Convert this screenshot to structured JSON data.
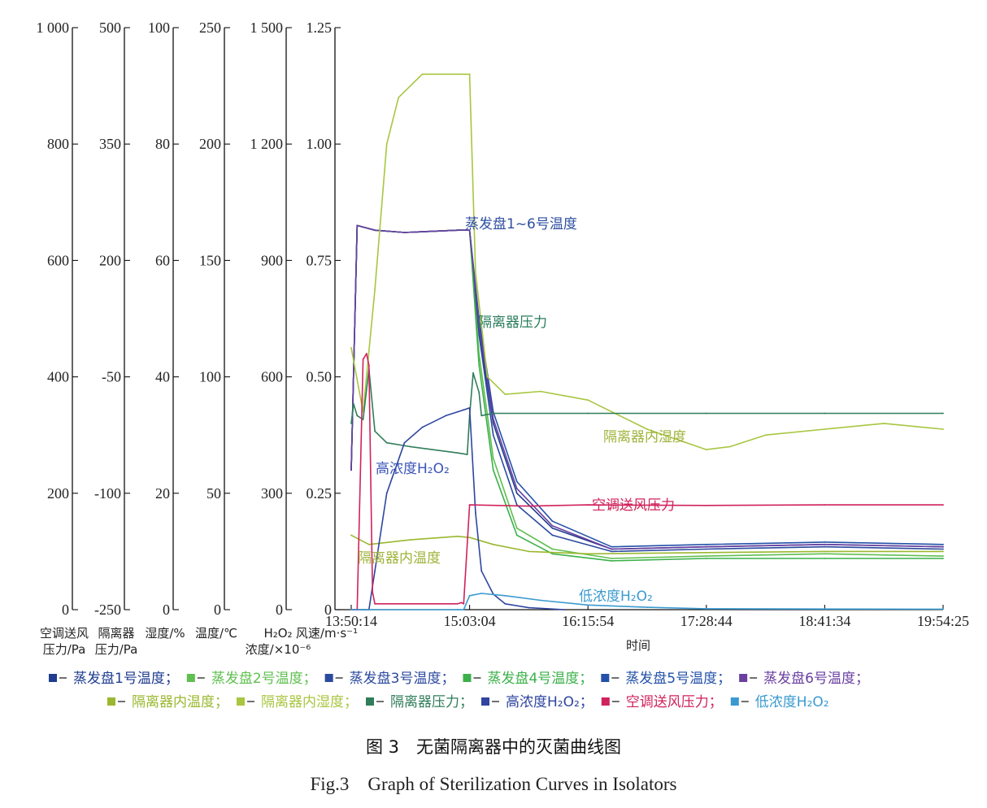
{
  "figure": {
    "caption_cn": "图 3　无菌隔离器中的灭菌曲线图",
    "caption_en": "Fig.3　Graph of Sterilization Curves in Isolators"
  },
  "chart_data": {
    "type": "line",
    "xlabel": "时间",
    "x_ticks": [
      "13:50:14",
      "15:03:04",
      "16:15:54",
      "17:28:44",
      "18:41:34",
      "19:54:25"
    ],
    "grid": false,
    "legend_position": "bottom",
    "axes": [
      {
        "id": "ac",
        "title": [
          "空调送风",
          "压力/Pa"
        ],
        "ticks": [
          "1 000",
          "800",
          "600",
          "400",
          "200",
          "0"
        ],
        "range": [
          0,
          1000
        ]
      },
      {
        "id": "iso",
        "title": [
          "隔离器",
          "压力/Pa"
        ],
        "ticks": [
          "500",
          "350",
          "200",
          "-50",
          "-100",
          "-250"
        ],
        "range": [
          -250,
          500
        ]
      },
      {
        "id": "hum",
        "title": [
          "湿度/%"
        ],
        "ticks": [
          "100",
          "80",
          "60",
          "40",
          "20",
          "0"
        ],
        "range": [
          0,
          100
        ]
      },
      {
        "id": "temp",
        "title": [
          "温度/℃"
        ],
        "ticks": [
          "250",
          "200",
          "150",
          "100",
          "50",
          "0"
        ],
        "range": [
          0,
          250
        ]
      },
      {
        "id": "h2o2",
        "title": [
          "H₂O₂",
          "浓度/×10⁻⁶"
        ],
        "ticks": [
          "1 500",
          "1 200",
          "900",
          "600",
          "300",
          "0"
        ],
        "range": [
          0,
          1500
        ]
      },
      {
        "id": "wind",
        "title": [
          "风速/m·s⁻¹"
        ],
        "ticks": [
          "1.25",
          "1.00",
          "0.75",
          "0.50",
          "0.25",
          "0"
        ],
        "range": [
          0,
          1.25
        ]
      }
    ],
    "annotations": [
      {
        "text": "蒸发盘1~6号温度",
        "color": "#2e4fa0"
      },
      {
        "text": "隔离器压力",
        "color": "#2a7d5d"
      },
      {
        "text": "隔离器内湿度",
        "color": "#9fb33a"
      },
      {
        "text": "高浓度H₂O₂",
        "color": "#3b55b8"
      },
      {
        "text": "空调送风压力",
        "color": "#d0225b"
      },
      {
        "text": "隔离器内温度",
        "color": "#9fb33a"
      },
      {
        "text": "低浓度H₂O₂",
        "color": "#3a9ad0"
      }
    ],
    "legend": [
      {
        "label": "蒸发盘1号温度；",
        "color": "#1f3d8f"
      },
      {
        "label": "蒸发盘2号温度；",
        "color": "#5fbf4f"
      },
      {
        "label": "蒸发盘3号温度；",
        "color": "#2b4a9e"
      },
      {
        "label": "蒸发盘4号温度；",
        "color": "#3cb04a"
      },
      {
        "label": "蒸发盘5号温度；",
        "color": "#2451a8"
      },
      {
        "label": "蒸发盘6号温度；",
        "color": "#6a3fa0"
      },
      {
        "label": "隔离器内温度；",
        "color": "#9ab82f"
      },
      {
        "label": "隔离器内湿度；",
        "color": "#a8c640"
      },
      {
        "label": "隔离器压力；",
        "color": "#2f7d5a"
      },
      {
        "label": "高浓度H₂O₂；",
        "color": "#2f45a0"
      },
      {
        "label": "空调送风压力；",
        "color": "#d0225b"
      },
      {
        "label": "低浓度H₂O₂",
        "color": "#3a9ad0"
      }
    ],
    "series": [
      {
        "name": "蒸发盘1号温度",
        "axis": "temp",
        "color": "#1f3d8f",
        "x": [
          0,
          0.05,
          0.2,
          0.45,
          0.9,
          1.0,
          1.08,
          1.2,
          1.4,
          1.7,
          2.2,
          3,
          4,
          5
        ],
        "y": [
          60,
          165,
          163,
          162,
          163,
          163,
          120,
          80,
          50,
          35,
          26,
          27,
          28,
          27
        ]
      },
      {
        "name": "蒸发盘2号温度",
        "axis": "temp",
        "color": "#5fbf4f",
        "x": [
          0,
          0.05,
          0.2,
          0.45,
          0.9,
          1.0,
          1.08,
          1.2,
          1.4,
          1.7,
          2.2,
          3,
          4,
          5
        ],
        "y": [
          60,
          165,
          163,
          162,
          163,
          163,
          110,
          65,
          35,
          26,
          22,
          23,
          24,
          23
        ]
      },
      {
        "name": "蒸发盘3号温度",
        "axis": "temp",
        "color": "#2b4a9e",
        "x": [
          0,
          0.05,
          0.2,
          0.45,
          0.9,
          1.0,
          1.08,
          1.2,
          1.4,
          1.7,
          2.2,
          3,
          4,
          5
        ],
        "y": [
          60,
          165,
          163,
          162,
          163,
          163,
          118,
          75,
          45,
          32,
          25,
          26,
          27,
          26
        ]
      },
      {
        "name": "蒸发盘4号温度",
        "axis": "temp",
        "color": "#3cb04a",
        "x": [
          0,
          0.05,
          0.2,
          0.45,
          0.9,
          1.0,
          1.08,
          1.2,
          1.4,
          1.7,
          2.2,
          3,
          4,
          5
        ],
        "y": [
          60,
          165,
          163,
          162,
          163,
          163,
          105,
          60,
          32,
          24,
          21,
          22,
          22,
          22
        ]
      },
      {
        "name": "蒸发盘5号温度",
        "axis": "temp",
        "color": "#2451a8",
        "x": [
          0,
          0.05,
          0.2,
          0.45,
          0.9,
          1.0,
          1.08,
          1.2,
          1.4,
          1.7,
          2.2,
          3,
          4,
          5
        ],
        "y": [
          60,
          165,
          163,
          162,
          163,
          163,
          125,
          85,
          55,
          38,
          27,
          28,
          29,
          28
        ]
      },
      {
        "name": "蒸发盘6号温度",
        "axis": "temp",
        "color": "#6a3fa0",
        "x": [
          0,
          0.05,
          0.2,
          0.45,
          0.9,
          1.0,
          1.08,
          1.2,
          1.4,
          1.7,
          2.2,
          3,
          4,
          5
        ],
        "y": [
          60,
          165,
          163,
          162,
          163,
          163,
          122,
          82,
          52,
          36,
          26,
          27,
          28,
          27
        ]
      },
      {
        "name": "隔离器内温度",
        "axis": "temp",
        "color": "#9ab82f",
        "x": [
          0,
          0.15,
          0.5,
          0.9,
          1.0,
          1.2,
          1.5,
          2.0,
          3.0,
          4.0,
          5.0
        ],
        "y": [
          32,
          28,
          30,
          31.5,
          31,
          28,
          25,
          24,
          24.5,
          25,
          25
        ]
      },
      {
        "name": "隔离器内湿度",
        "axis": "hum",
        "color": "#a8c640",
        "x": [
          0,
          0.1,
          0.2,
          0.3,
          0.4,
          0.6,
          0.9,
          1.0,
          1.05,
          1.15,
          1.3,
          1.6,
          2.0,
          2.5,
          3.0,
          3.2,
          3.5,
          4.0,
          4.5,
          5.0
        ],
        "y": [
          45,
          34,
          55,
          80,
          88,
          92,
          92,
          92,
          58,
          40,
          37,
          37.5,
          36,
          31,
          27.5,
          28,
          30,
          31,
          32,
          31
        ]
      },
      {
        "name": "隔离器压力",
        "axis": "iso",
        "color": "#2f7d5a",
        "x": [
          0,
          0.02,
          0.05,
          0.1,
          0.15,
          0.2,
          0.3,
          0.5,
          0.9,
          0.98,
          1.0,
          1.03,
          1.08,
          1.1,
          1.2,
          2,
          3,
          4,
          5
        ],
        "y": [
          -10,
          15,
          0,
          -5,
          60,
          -20,
          -35,
          -40,
          -48,
          -50,
          0,
          55,
          30,
          0,
          3,
          3,
          3,
          3,
          3
        ]
      },
      {
        "name": "高浓度H₂O₂",
        "axis": "h2o2",
        "color": "#2f45a0",
        "x": [
          0,
          0.1,
          0.15,
          0.2,
          0.3,
          0.45,
          0.6,
          0.8,
          0.9,
          0.95,
          1.0,
          1.05,
          1.1,
          1.2,
          1.3,
          1.5,
          1.8
        ],
        "y": [
          0,
          0,
          0,
          100,
          300,
          430,
          470,
          500,
          510,
          515,
          520,
          250,
          100,
          40,
          15,
          5,
          0
        ]
      },
      {
        "name": "空调送风压力",
        "axis": "ac",
        "color": "#d0225b",
        "x": [
          0,
          0.05,
          0.1,
          0.13,
          0.15,
          0.18,
          0.2,
          0.5,
          0.9,
          0.93,
          0.95,
          1.0,
          1.5,
          2,
          3,
          4,
          5
        ],
        "y": [
          0,
          0,
          430,
          440,
          420,
          30,
          10,
          10,
          10,
          12,
          10,
          180,
          178,
          180,
          179,
          180,
          180
        ]
      },
      {
        "name": "低浓度H₂O₂",
        "axis": "wind",
        "color": "#3a9ad0",
        "x": [
          0,
          0.9,
          0.95,
          1.0,
          1.1,
          1.3,
          1.6,
          2.0,
          2.5,
          3.0,
          5.0
        ],
        "y": [
          0,
          0,
          0,
          0.03,
          0.035,
          0.03,
          0.02,
          0.01,
          0.005,
          0.002,
          0.001
        ]
      }
    ]
  }
}
